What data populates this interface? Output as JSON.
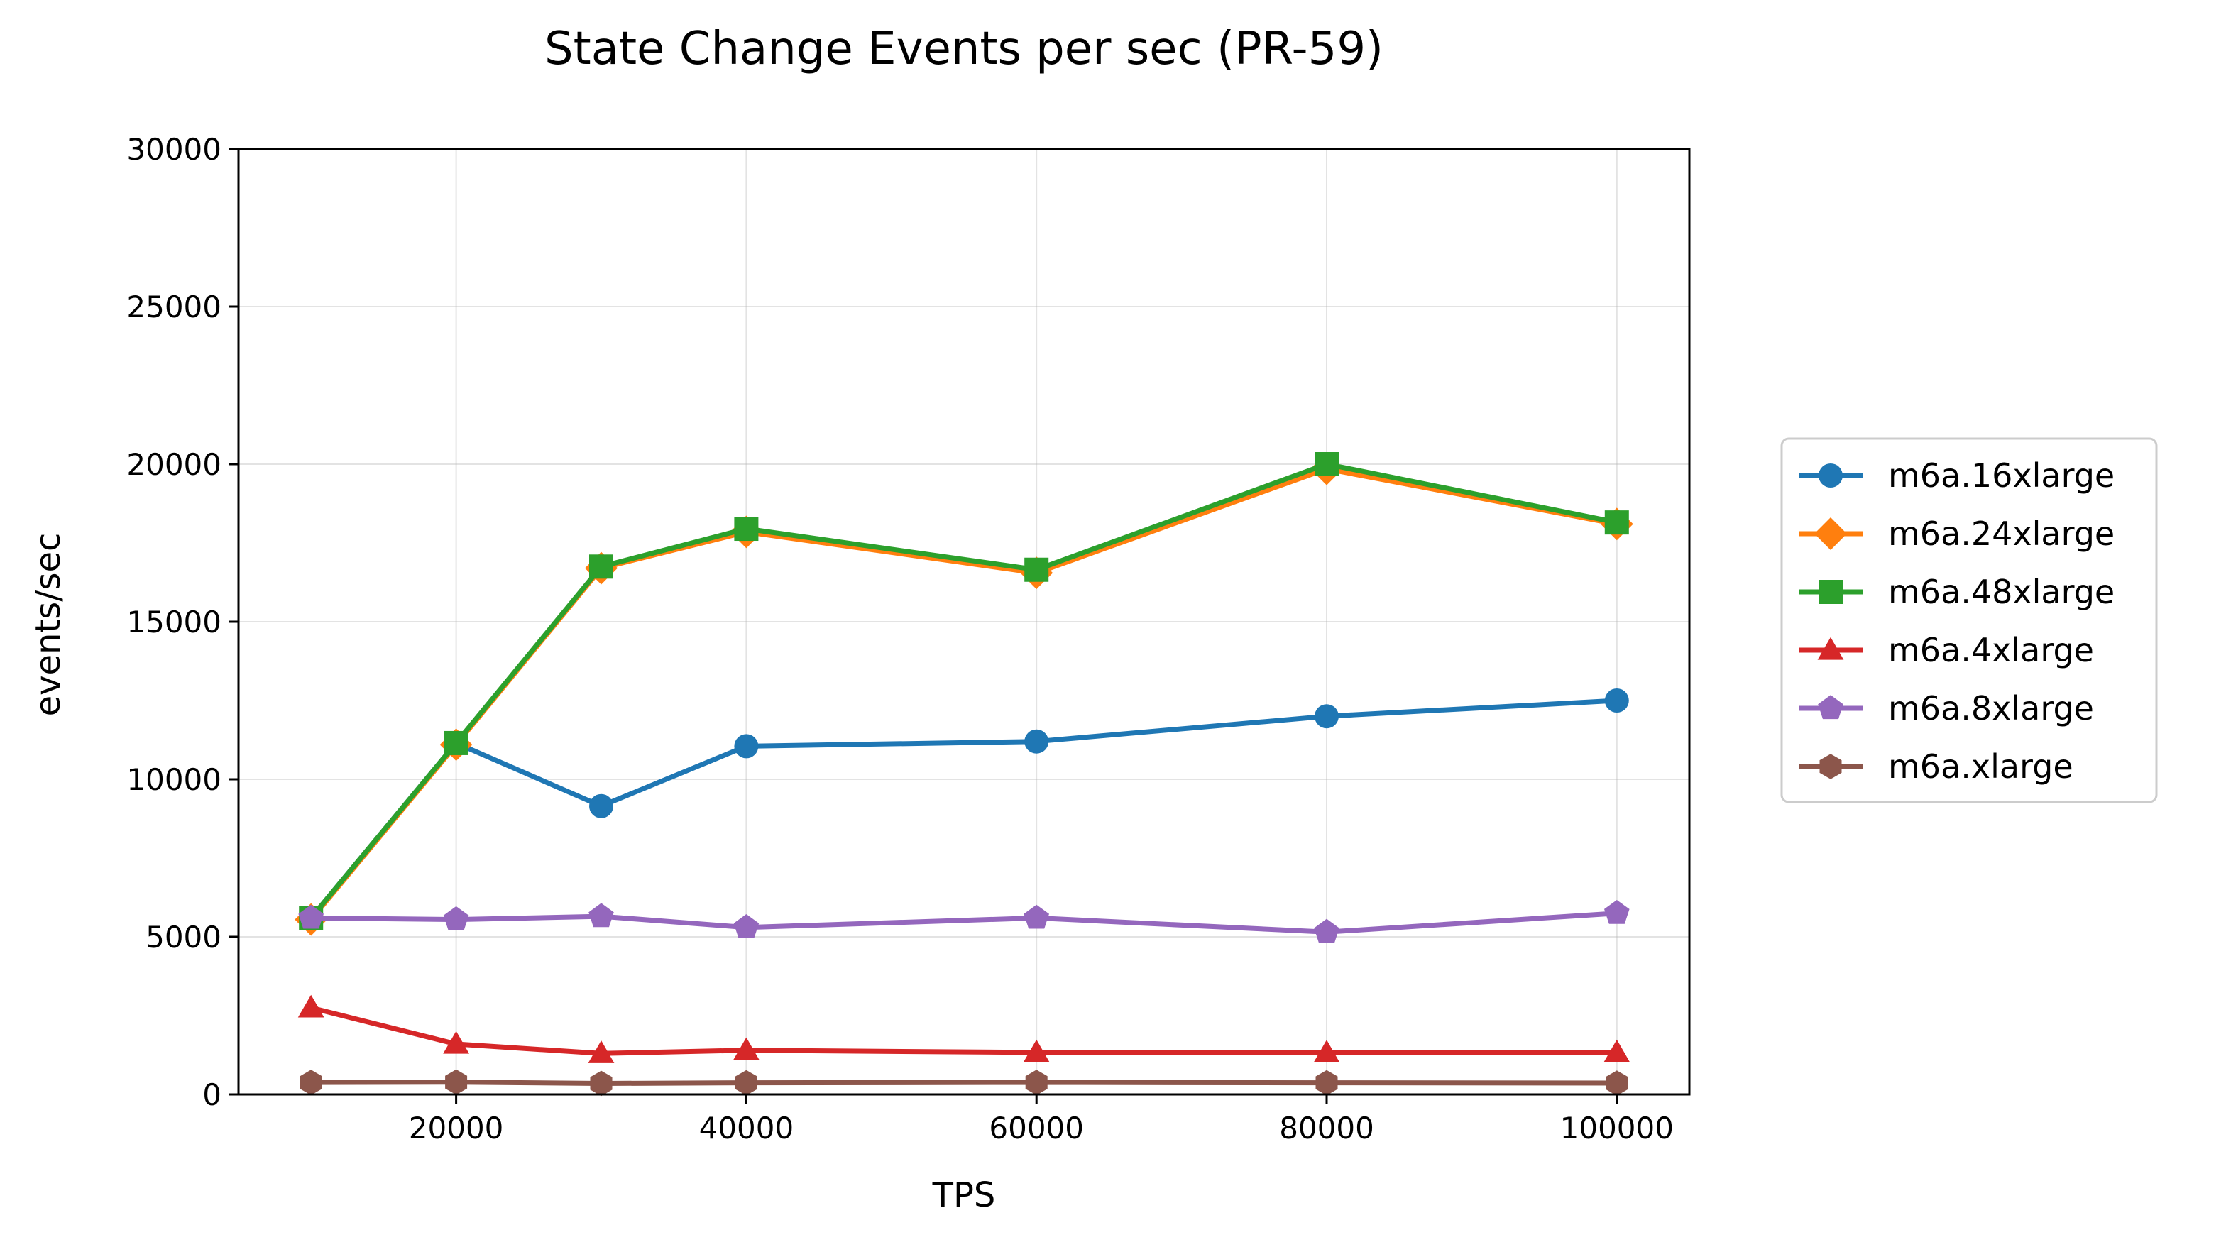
{
  "chart_data": {
    "type": "line",
    "title": "State Change Events per sec (PR-59)",
    "xlabel": "TPS",
    "ylabel": "events/sec",
    "xlim": [
      5000,
      105000
    ],
    "ylim": [
      0,
      30000
    ],
    "xticks": [
      "20000",
      "40000",
      "60000",
      "80000",
      "100000"
    ],
    "xtick_values": [
      20000,
      40000,
      60000,
      80000,
      100000
    ],
    "yticks": [
      "0",
      "5000",
      "10000",
      "15000",
      "20000",
      "25000",
      "30000"
    ],
    "ytick_values": [
      0,
      5000,
      10000,
      15000,
      20000,
      25000,
      30000
    ],
    "grid": true,
    "legend_position": "right",
    "x": [
      10000,
      20000,
      30000,
      40000,
      60000,
      80000,
      100000
    ],
    "series": [
      {
        "name": "m6a.16xlarge",
        "color": "#1f77b4",
        "marker": "circle",
        "values": [
          5600,
          11150,
          9150,
          11050,
          11200,
          12000,
          12500
        ]
      },
      {
        "name": "m6a.24xlarge",
        "color": "#ff7f0e",
        "marker": "diamond",
        "values": [
          5550,
          11100,
          16700,
          17850,
          16550,
          19850,
          18100
        ]
      },
      {
        "name": "m6a.48xlarge",
        "color": "#2ca02c",
        "marker": "square",
        "values": [
          5600,
          11150,
          16750,
          17950,
          16650,
          20000,
          18150
        ]
      },
      {
        "name": "m6a.4xlarge",
        "color": "#d62728",
        "marker": "triangle",
        "values": [
          2750,
          1600,
          1300,
          1400,
          1330,
          1320,
          1330
        ]
      },
      {
        "name": "m6a.8xlarge",
        "color": "#9467bd",
        "marker": "pentagon",
        "values": [
          5600,
          5550,
          5650,
          5300,
          5600,
          5150,
          5750
        ]
      },
      {
        "name": "m6a.xlarge",
        "color": "#8c564b",
        "marker": "hexagon",
        "values": [
          380,
          390,
          350,
          370,
          380,
          370,
          360
        ]
      }
    ]
  }
}
